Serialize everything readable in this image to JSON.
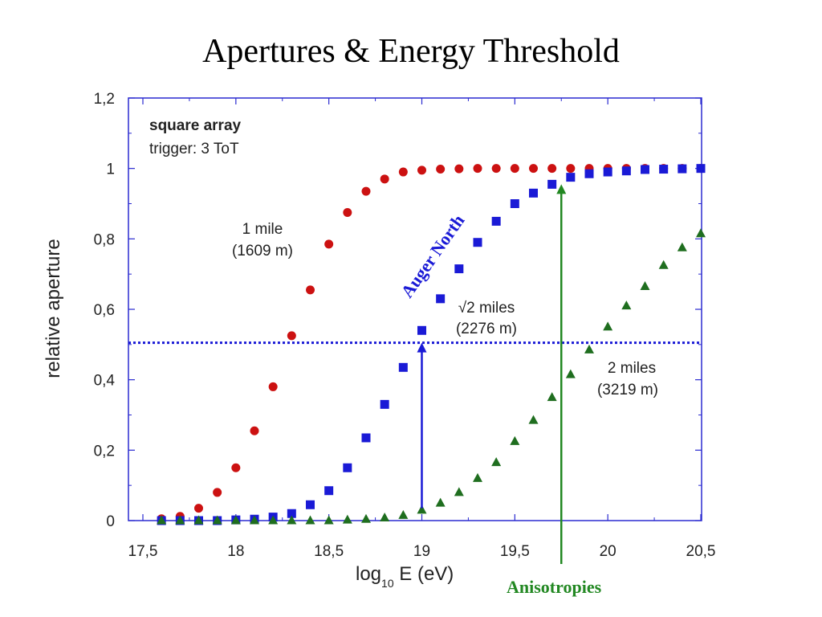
{
  "title": "Apertures & Energy Threshold",
  "anisotropies_label": "Anisotropies",
  "colors": {
    "series_1mile": "#cc1111",
    "series_sqrt2": "#1a1ad6",
    "series_2miles": "#1f6e1f",
    "auger_north": "#1a1ad6",
    "anisotropies": "#228822",
    "frame": "#2a2ad0",
    "threshold_line": "#1a1ad6"
  },
  "chart_data": {
    "type": "scatter",
    "xlabel_main": "log",
    "xlabel_sub": "10",
    "xlabel_rest": " E (eV)",
    "ylabel": "relative aperture",
    "xlim": [
      17.5,
      20.5
    ],
    "ylim": [
      0,
      1.2
    ],
    "xticks": [
      17.5,
      18,
      18.5,
      19,
      19.5,
      20,
      20.5
    ],
    "xtick_labels": [
      "17,5",
      "18",
      "18,5",
      "19",
      "19,5",
      "20",
      "20,5"
    ],
    "yticks": [
      0,
      0.2,
      0.4,
      0.6,
      0.8,
      1,
      1.2
    ],
    "ytick_labels": [
      "0",
      "0,2",
      "0,4",
      "0,6",
      "0,8",
      "1",
      "1,2"
    ],
    "legend_box": {
      "line1": "square array",
      "line2": "trigger: 3 ToT"
    },
    "threshold_y": 0.505,
    "series": [
      {
        "name": "1 mile",
        "label_line1": "1 mile",
        "label_line2": "(1609 m)",
        "marker": "circle",
        "x": [
          17.6,
          17.7,
          17.8,
          17.9,
          18.0,
          18.1,
          18.2,
          18.3,
          18.4,
          18.5,
          18.6,
          18.7,
          18.8,
          18.9,
          19.0,
          19.1,
          19.2,
          19.3,
          19.4,
          19.5,
          19.6,
          19.7,
          19.8,
          19.9,
          20.0,
          20.1,
          20.2,
          20.3,
          20.4,
          20.5
        ],
        "y": [
          0.005,
          0.012,
          0.035,
          0.08,
          0.15,
          0.255,
          0.38,
          0.525,
          0.655,
          0.785,
          0.875,
          0.935,
          0.97,
          0.99,
          0.995,
          0.998,
          0.999,
          1.0,
          1.0,
          1.0,
          1.0,
          1.0,
          1.0,
          1.0,
          1.0,
          1.0,
          1.0,
          1.0,
          1.0,
          1.0
        ]
      },
      {
        "name": "√2 miles",
        "label_line1": "√2 miles",
        "label_line2": "(2276 m)",
        "marker": "square",
        "x": [
          17.6,
          17.7,
          17.8,
          17.9,
          18.0,
          18.1,
          18.2,
          18.3,
          18.4,
          18.5,
          18.6,
          18.7,
          18.8,
          18.9,
          19.0,
          19.1,
          19.2,
          19.3,
          19.4,
          19.5,
          19.6,
          19.7,
          19.8,
          19.9,
          20.0,
          20.1,
          20.2,
          20.3,
          20.4,
          20.5
        ],
        "y": [
          0.0,
          0.0,
          0.0,
          0.0,
          0.002,
          0.004,
          0.01,
          0.02,
          0.045,
          0.085,
          0.15,
          0.235,
          0.33,
          0.435,
          0.54,
          0.63,
          0.715,
          0.79,
          0.85,
          0.9,
          0.93,
          0.955,
          0.975,
          0.985,
          0.99,
          0.993,
          0.997,
          0.998,
          0.999,
          1.0
        ]
      },
      {
        "name": "2 miles",
        "label_line1": "2 miles",
        "label_line2": "(3219 m)",
        "marker": "triangle",
        "x": [
          17.6,
          17.7,
          17.8,
          17.9,
          18.0,
          18.1,
          18.2,
          18.3,
          18.4,
          18.5,
          18.6,
          18.7,
          18.8,
          18.9,
          19.0,
          19.1,
          19.2,
          19.3,
          19.4,
          19.5,
          19.6,
          19.7,
          19.8,
          19.9,
          20.0,
          20.1,
          20.2,
          20.3,
          20.4,
          20.5
        ],
        "y": [
          0.0,
          0.0,
          0.0,
          0.0,
          0.0,
          0.0,
          0.0,
          0.0,
          0.0,
          0.0,
          0.002,
          0.004,
          0.008,
          0.015,
          0.03,
          0.05,
          0.08,
          0.12,
          0.165,
          0.225,
          0.285,
          0.35,
          0.415,
          0.485,
          0.55,
          0.61,
          0.665,
          0.725,
          0.775,
          0.815
        ]
      }
    ],
    "annotations": [
      {
        "name": "auger-north",
        "text": "Auger North",
        "arrow_from": [
          19.0,
          0.035
        ],
        "arrow_to": [
          19.0,
          0.505
        ]
      },
      {
        "name": "anisotropies",
        "text": "Anisotropies",
        "arrow_from": [
          19.75,
          0.0
        ],
        "arrow_to": [
          19.75,
          0.955
        ]
      }
    ]
  }
}
